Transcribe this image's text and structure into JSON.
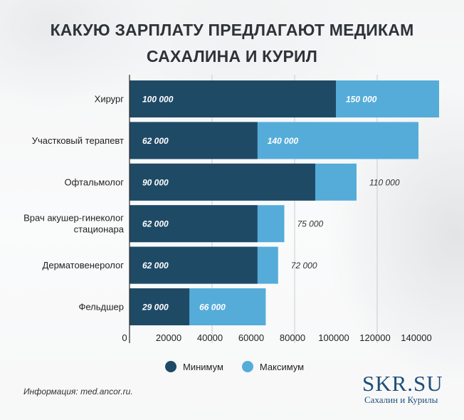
{
  "title_lines": [
    "КАКУЮ ЗАРПЛАТУ ПРЕДЛАГАЮТ МЕДИКАМ",
    "САХАЛИНА И КУРИЛ"
  ],
  "colors": {
    "min": "#1f4a66",
    "max": "#55acd9",
    "title": "#2e3338",
    "logo": "#1e4e7a"
  },
  "chart_data": {
    "type": "bar",
    "orientation": "horizontal",
    "stacked": "overlay",
    "categories": [
      [
        "Хирург"
      ],
      [
        "Участковый терапевт"
      ],
      [
        "Офтальмолог"
      ],
      [
        "Врач акушер-гинеколог",
        "стационара"
      ],
      [
        "Дерматовенеролог"
      ],
      [
        "Фельдшер"
      ]
    ],
    "series": [
      {
        "name": "Минимум",
        "values": [
          100000,
          62000,
          90000,
          62000,
          62000,
          29000
        ],
        "labels": [
          "100 000",
          "62 000",
          "90 000",
          "62 000",
          "62 000",
          "29 000"
        ]
      },
      {
        "name": "Максимум",
        "values": [
          150000,
          140000,
          110000,
          75000,
          72000,
          66000
        ],
        "labels": [
          "150 000",
          "140 000",
          "110 000",
          "75 000",
          "72 000",
          "66 000"
        ]
      }
    ],
    "xlim": [
      0,
      150000
    ],
    "xticks": [
      0,
      20000,
      40000,
      60000,
      80000,
      100000,
      120000,
      140000
    ],
    "xtick_labels": [
      "0",
      "20000",
      "40000",
      "60000",
      "80000",
      "100000",
      "120000",
      "140000"
    ],
    "gridlines": [
      40000,
      80000,
      120000
    ],
    "legend_position": "bottom"
  },
  "source": "Информация: med.ancor.ru.",
  "logo": {
    "name": "SKR.SU",
    "tagline": "Сахалин и Курилы"
  }
}
